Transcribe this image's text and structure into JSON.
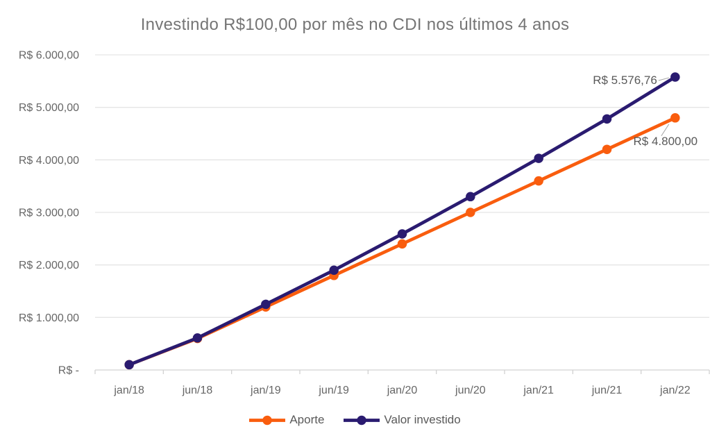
{
  "chart_data": {
    "type": "line",
    "title": "Investindo R$100,00 por mês no CDI nos últimos 4 anos",
    "categories": [
      "jan/18",
      "jun/18",
      "jan/19",
      "jun/19",
      "jan/20",
      "jun/20",
      "jan/21",
      "jun/21",
      "jan/22"
    ],
    "series": [
      {
        "name": "Aporte",
        "color": "#F95D0E",
        "values": [
          100,
          600,
          1200,
          1800,
          2400,
          3000,
          3600,
          4200,
          4800
        ]
      },
      {
        "name": "Valor investido",
        "color": "#2A1B70",
        "values": [
          100,
          610,
          1250,
          1900,
          2590,
          3300,
          4030,
          4780,
          5576.76
        ]
      }
    ],
    "ylim": [
      0,
      6000
    ],
    "y_ticks": [
      {
        "value": 6000,
        "label": "R$ 6.000,00"
      },
      {
        "value": 5000,
        "label": "R$ 5.000,00"
      },
      {
        "value": 4000,
        "label": "R$ 4.000,00"
      },
      {
        "value": 3000,
        "label": "R$ 3.000,00"
      },
      {
        "value": 2000,
        "label": "R$ 2.000,00"
      },
      {
        "value": 1000,
        "label": "R$ 1.000,00"
      },
      {
        "value": 0,
        "label": "R$ -"
      }
    ],
    "xlabel": "",
    "ylabel": "",
    "grid": "horizontal",
    "legend": {
      "position": "bottom",
      "entries": [
        "Aporte",
        "Valor investido"
      ]
    },
    "point_labels": [
      {
        "series": "Valor investido",
        "point": "jan/22",
        "text": "R$ 5.576,76"
      },
      {
        "series": "Aporte",
        "point": "jan/22",
        "text": "R$ 4.800,00"
      }
    ],
    "colors": {
      "title": "#757575",
      "axis_label": "#666666",
      "data_label": "#595959",
      "gridline": "#E5E5E5",
      "axis_line": "#D2D2D2",
      "leader_line": "#A6A6A6"
    }
  }
}
